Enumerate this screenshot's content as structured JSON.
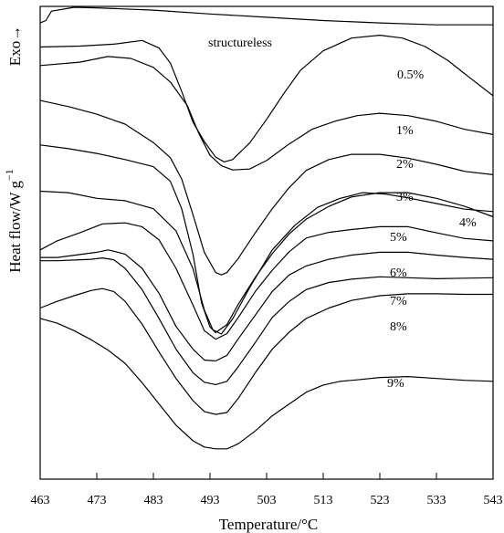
{
  "chart_data": {
    "type": "line",
    "title": "",
    "xlabel": "Temperature/°C",
    "ylabel": "Heat flow/W g",
    "ylabel_superscript": "−1",
    "exo_label": "Exo",
    "exo_arrow": "→",
    "xlim": [
      463,
      543
    ],
    "xticks": [
      "463",
      "473",
      "483",
      "493",
      "503",
      "513",
      "523",
      "533",
      "543"
    ],
    "y_ticks_shown": false,
    "grid": false,
    "note": "Curves are vertically offset; y values are relative heat flow in arbitrary units (0 = top of plot, 100 = bottom).",
    "series": [
      {
        "name": "structureless",
        "label": "structureless",
        "x": [
          463,
          464,
          465,
          469,
          473,
          483,
          493,
          503,
          513,
          523,
          533,
          543
        ],
        "y": [
          3.5,
          3.0,
          1.0,
          0.2,
          0.3,
          0.8,
          1.6,
          2.3,
          3.0,
          3.5,
          3.9,
          3.9
        ]
      },
      {
        "name": "0.5%",
        "label": "0.5%",
        "x": [
          463,
          470,
          476,
          481,
          484,
          486,
          488,
          490,
          492,
          494,
          495.5,
          497,
          500,
          503,
          506,
          509,
          513,
          518,
          523,
          527,
          531,
          535,
          539,
          543
        ],
        "y": [
          8.6,
          8.4,
          8.0,
          7.2,
          8.8,
          12,
          18,
          24.5,
          28.6,
          31.9,
          32.9,
          32.4,
          28.9,
          23.9,
          18.5,
          13.5,
          9.4,
          6.7,
          6.1,
          6.7,
          8.5,
          11.4,
          15.2,
          18.9
        ]
      },
      {
        "name": "1%",
        "label": "1%",
        "x": [
          463,
          470,
          475,
          479,
          483,
          486,
          489,
          491,
          493,
          495,
          497,
          500,
          503,
          507,
          511,
          515,
          519,
          523,
          528,
          533,
          538,
          543
        ],
        "y": [
          12.5,
          11.8,
          10.6,
          11.0,
          12.9,
          16,
          21,
          26.8,
          31.5,
          33.7,
          34.6,
          34.4,
          32.6,
          29.1,
          26,
          24.3,
          23.1,
          22.6,
          23.1,
          24.3,
          26.0,
          27.1
        ]
      },
      {
        "name": "2%",
        "label": "2%",
        "x": [
          463,
          468,
          473,
          478,
          483,
          486,
          488,
          490,
          492,
          494,
          495,
          496,
          498,
          501,
          504,
          507,
          510,
          514,
          518,
          523,
          528,
          533,
          538,
          543
        ],
        "y": [
          19.9,
          21.2,
          22.8,
          24.9,
          28.8,
          32,
          36.5,
          44.1,
          52,
          56.3,
          56.8,
          56.3,
          53.3,
          47.9,
          42.8,
          38.3,
          34.7,
          32.4,
          31.3,
          31.3,
          32.1,
          33.4,
          34.9,
          35.6
        ]
      },
      {
        "name": "3%",
        "label": "3%",
        "x": [
          463,
          468,
          473,
          478,
          483,
          486,
          488,
          490,
          491.5,
          493,
          494,
          496,
          498,
          501,
          504,
          507,
          510,
          514,
          518,
          523,
          528,
          533,
          538,
          543
        ],
        "y": [
          29.3,
          30.1,
          31.1,
          32.4,
          33.9,
          37,
          42.8,
          52.5,
          62.7,
          67.8,
          69.0,
          67.3,
          63,
          57.3,
          52.3,
          48.1,
          45.0,
          42.3,
          40.3,
          39.4,
          39.4,
          40.6,
          42.3,
          44.5
        ]
      },
      {
        "name": "4%",
        "label": "4%",
        "x": [
          463,
          468,
          473,
          478,
          483,
          487,
          490,
          492,
          493.5,
          495,
          497,
          500,
          504,
          508,
          512,
          516,
          520,
          524,
          528,
          533,
          538,
          543
        ],
        "y": [
          39.1,
          39.4,
          40.6,
          41.1,
          42.8,
          47.5,
          55.5,
          64.2,
          68.4,
          69.3,
          66.1,
          59.5,
          51.5,
          46.3,
          42.5,
          40.6,
          39.4,
          39.7,
          40.5,
          41.7,
          42.9,
          43.4
        ]
      },
      {
        "name": "5%",
        "label": "5%",
        "x": [
          463,
          466,
          470,
          474,
          478,
          481,
          484,
          487,
          490,
          492,
          494,
          496,
          498,
          501,
          504,
          507,
          510,
          514,
          518,
          523,
          528,
          533,
          538,
          543
        ],
        "y": [
          51.5,
          49.6,
          47.9,
          46.0,
          45.8,
          46.6,
          49.4,
          55.4,
          63.2,
          68.6,
          70.4,
          69.2,
          65.8,
          60.3,
          55.8,
          51.9,
          49.0,
          47.8,
          47.2,
          46.6,
          46.6,
          47.9,
          49.1,
          49.6
        ]
      },
      {
        "name": "6%",
        "label": "6%",
        "x": [
          463,
          466,
          470,
          473,
          475,
          478,
          481,
          484,
          487,
          490,
          492,
          494,
          496,
          498,
          501,
          504,
          507,
          510,
          514,
          518,
          523,
          528,
          533,
          538,
          543
        ],
        "y": [
          53.1,
          53.1,
          52.5,
          52.0,
          51.5,
          52.4,
          55.4,
          60.7,
          67.7,
          72.5,
          74.8,
          75.0,
          73.8,
          70.3,
          65.3,
          60.3,
          56.8,
          54.9,
          53.5,
          52.6,
          52.0,
          52.0,
          52.6,
          53.1,
          53.5
        ]
      },
      {
        "name": "7%",
        "label": "7%",
        "x": [
          463,
          466,
          470,
          472,
          474,
          476,
          478,
          481,
          484,
          487,
          490,
          492,
          494,
          496,
          498,
          501,
          504,
          507,
          510,
          514,
          518,
          523,
          528,
          533,
          538,
          543
        ],
        "y": [
          53.8,
          53.8,
          53.6,
          53.5,
          53.2,
          53.6,
          55.4,
          59.9,
          66.0,
          72.5,
          77.5,
          79.5,
          80.0,
          79.3,
          76.2,
          71.1,
          65.8,
          62.4,
          59.9,
          58.4,
          57.7,
          57.2,
          57.4,
          57.6,
          57.5,
          57.4
        ]
      },
      {
        "name": "8%",
        "label": "8%",
        "x": [
          463,
          466,
          469,
          472,
          474,
          476,
          478,
          481,
          484,
          487,
          490,
          492,
          494,
          496,
          498,
          501,
          504,
          507,
          510,
          514,
          518,
          523,
          528,
          533,
          538,
          543
        ],
        "y": [
          63.8,
          62.4,
          61.2,
          60.1,
          59.7,
          60.3,
          62.4,
          67.2,
          73.1,
          78.7,
          83.4,
          85.7,
          86.3,
          85.9,
          82.9,
          77.5,
          72.5,
          68.9,
          66.0,
          63.8,
          62.2,
          61.2,
          60.8,
          60.8,
          60.9,
          60.9
        ]
      },
      {
        "name": "9%",
        "label": "9%",
        "x": [
          463,
          466,
          469,
          472,
          475,
          478,
          481,
          484,
          487,
          490,
          492,
          494,
          496,
          498,
          501,
          504,
          507,
          510,
          513,
          516,
          519,
          523,
          528,
          533,
          538,
          543
        ],
        "y": [
          66.0,
          67.0,
          68.6,
          70.5,
          72.7,
          75.5,
          79.6,
          84.1,
          88.6,
          91.9,
          93.2,
          93.6,
          93.6,
          92.5,
          89.8,
          86.6,
          84.1,
          81.6,
          80.1,
          79.3,
          79.0,
          78.5,
          78.3,
          78.7,
          79.1,
          79.3
        ]
      }
    ]
  }
}
